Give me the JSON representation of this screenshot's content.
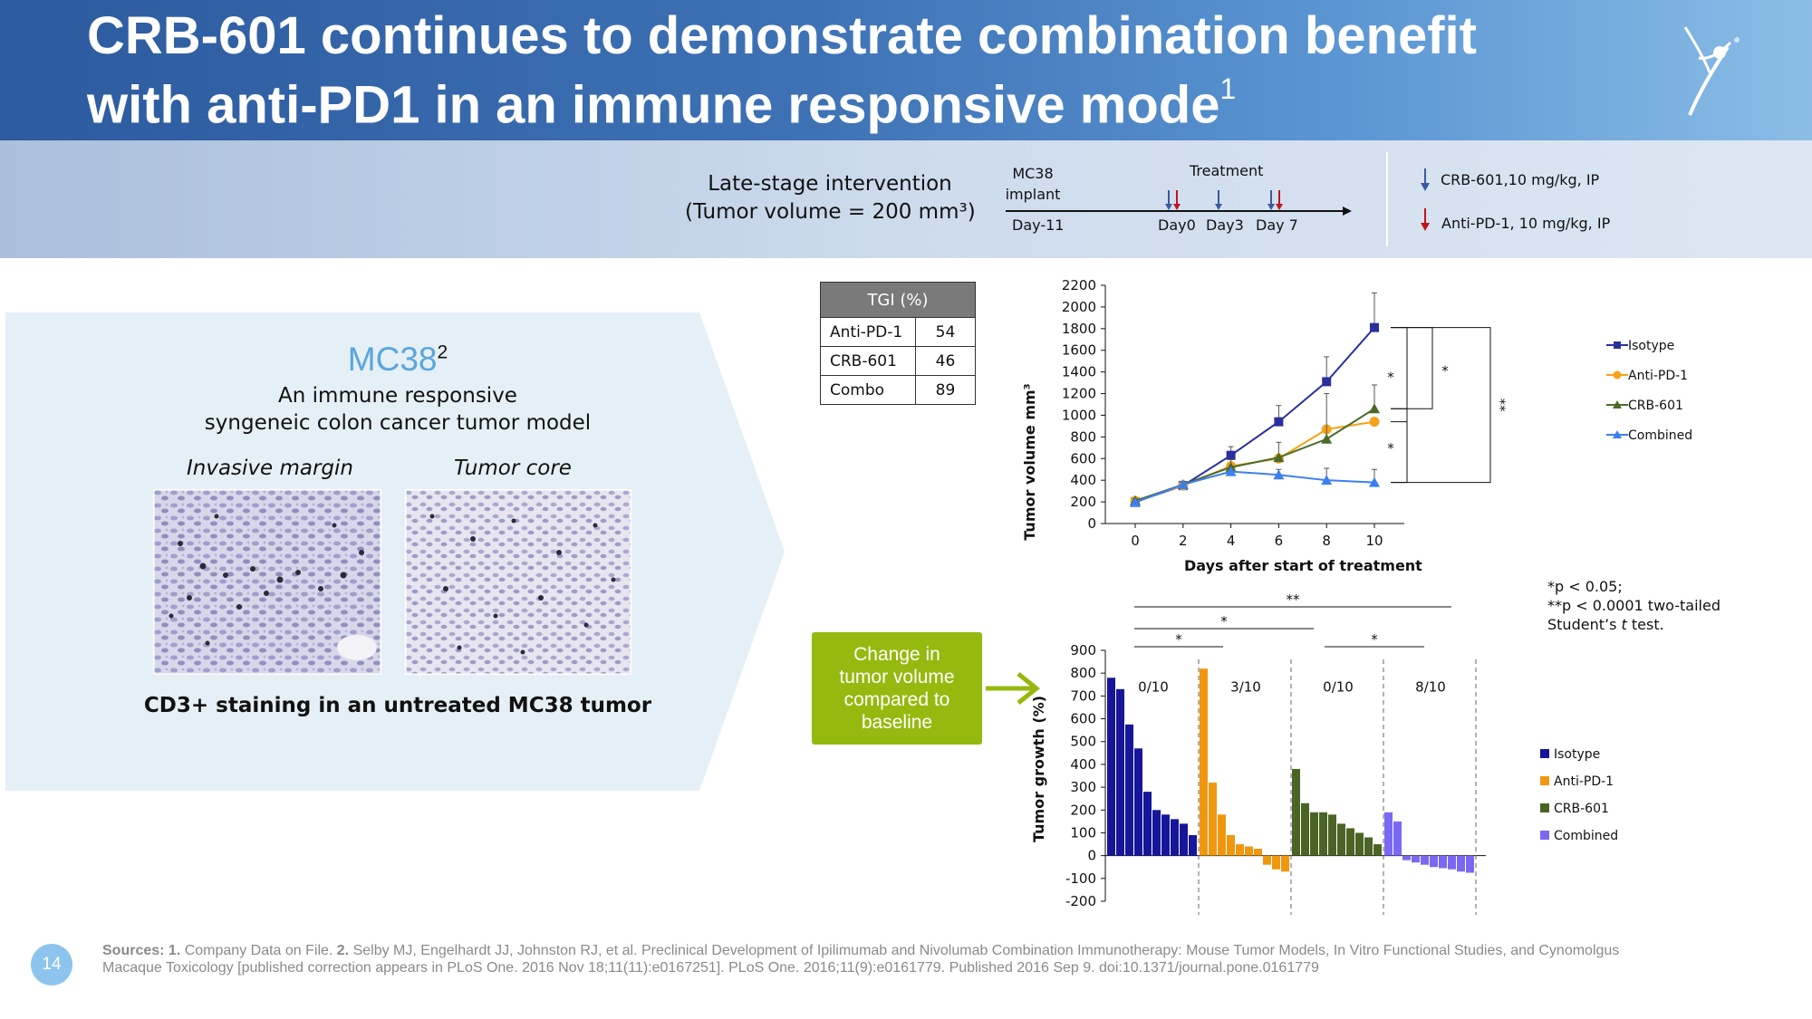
{
  "header": {
    "title_line1": "CRB-601 continues to demonstrate combination benefit",
    "title_line2": "with anti-PD1 in an immune responsive mode",
    "title_sup": "1"
  },
  "timeline": {
    "intervention_line1": "Late-stage intervention",
    "intervention_line2": "(Tumor volume = 200 mm³)",
    "implant_label_line1": "MC38",
    "implant_label_line2": "implant",
    "treatment_label": "Treatment",
    "days": [
      "Day-11",
      "Day0",
      "Day3",
      "Day 7"
    ],
    "legend_crb": "CRB-601,10 mg/kg, IP",
    "legend_pd1": "Anti-PD-1, 10 mg/kg, IP",
    "colors": {
      "crb_arrow": "#3a5a9c",
      "pd1_arrow": "#c0141c"
    }
  },
  "left_panel": {
    "model_name": "MC38",
    "model_sup": "2",
    "desc_line1": "An immune responsive",
    "desc_line2": "syngeneic colon cancer tumor model",
    "image1_label": "Invasive margin",
    "image2_label": "Tumor core",
    "caption": "CD3+ staining in an untreated MC38 tumor"
  },
  "tgi_table": {
    "header": "TGI (%)",
    "rows": [
      {
        "name": "Anti-PD-1",
        "value": "54"
      },
      {
        "name": "CRB-601",
        "value": "46"
      },
      {
        "name": "Combo",
        "value": "89"
      }
    ]
  },
  "callout": {
    "text": "Change in tumor volume compared to baseline"
  },
  "stats_note": {
    "line1": "*p < 0.05;",
    "line2": "**p < 0.0001 two-tailed",
    "line3_pre": "Student’s ",
    "line3_t": "t",
    "line3_post": " test."
  },
  "chart_data": [
    {
      "type": "line",
      "xlabel": "Days after start of treatment",
      "ylabel": "Tumor volume mm³",
      "xlim": [
        0,
        10
      ],
      "ylim": [
        0,
        2200
      ],
      "xticks": [
        0,
        2,
        4,
        6,
        8,
        10
      ],
      "yticks": [
        0,
        200,
        400,
        600,
        800,
        1000,
        1200,
        1400,
        1600,
        1800,
        2000,
        2200
      ],
      "x": [
        0,
        2,
        4,
        6,
        8,
        10
      ],
      "series": [
        {
          "name": "Isotype",
          "color": "#2b2f9e",
          "marker": "square",
          "values": [
            200,
            350,
            630,
            940,
            1310,
            1810
          ],
          "err": [
            30,
            40,
            80,
            150,
            230,
            320
          ]
        },
        {
          "name": "Anti-PD-1",
          "color": "#f5a31a",
          "marker": "circle",
          "values": [
            210,
            350,
            530,
            600,
            870,
            940
          ],
          "err": [
            0,
            0,
            0,
            0,
            0,
            0
          ]
        },
        {
          "name": "CRB-601",
          "color": "#4b6a2a",
          "marker": "triangle",
          "values": [
            210,
            360,
            520,
            610,
            780,
            1060
          ],
          "err": [
            20,
            30,
            70,
            140,
            420,
            220
          ]
        },
        {
          "name": "Combined",
          "color": "#3d7ff0",
          "marker": "triangle",
          "values": [
            195,
            360,
            480,
            450,
            400,
            380
          ],
          "err": [
            15,
            20,
            40,
            50,
            110,
            120
          ]
        }
      ],
      "significance": [
        "*",
        "*",
        "*",
        "**"
      ],
      "legend_position": "right"
    },
    {
      "type": "bar",
      "ylabel": "Tumor growth (%)",
      "ylim": [
        -200,
        900
      ],
      "yticks": [
        -200,
        -100,
        0,
        100,
        200,
        300,
        400,
        500,
        600,
        700,
        800,
        900
      ],
      "groups": [
        {
          "name": "Isotype",
          "color": "#17169a",
          "responders": "0/10",
          "values": [
            780,
            730,
            575,
            470,
            280,
            200,
            180,
            160,
            140,
            90
          ]
        },
        {
          "name": "Anti-PD-1",
          "color": "#f0970f",
          "responders": "3/10",
          "values": [
            820,
            320,
            180,
            90,
            50,
            40,
            30,
            -40,
            -60,
            -70
          ]
        },
        {
          "name": "CRB-601",
          "color": "#4a6425",
          "responders": "0/10",
          "values": [
            380,
            230,
            190,
            190,
            180,
            140,
            120,
            100,
            80,
            50
          ]
        },
        {
          "name": "Combined",
          "color": "#7b68f2",
          "responders": "8/10",
          "values": [
            190,
            150,
            -20,
            -30,
            -40,
            -50,
            -55,
            -60,
            -70,
            -75
          ]
        }
      ],
      "significance": [
        "**",
        "*",
        "*",
        "*"
      ],
      "legend_position": "right"
    }
  ]
}
